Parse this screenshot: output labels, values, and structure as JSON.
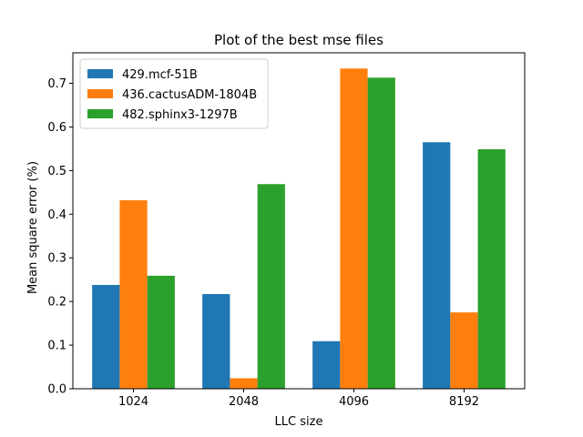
{
  "chart_data": {
    "type": "bar",
    "title": "Plot of the best mse files",
    "xlabel": "LLC size",
    "ylabel": "Mean square error (%)",
    "categories": [
      "1024",
      "2048",
      "4096",
      "8192"
    ],
    "series": [
      {
        "name": "429.mcf-51B",
        "color": "#1f77b4",
        "values": [
          0.238,
          0.217,
          0.109,
          0.565
        ]
      },
      {
        "name": "436.cactusADM-1804B",
        "color": "#ff7f0e",
        "values": [
          0.432,
          0.024,
          0.734,
          0.175
        ]
      },
      {
        "name": "482.sphinx3-1297B",
        "color": "#2ca02c",
        "values": [
          0.259,
          0.469,
          0.713,
          0.549
        ]
      }
    ],
    "ylim": [
      0,
      0.77
    ],
    "yticks": [
      0.0,
      0.1,
      0.2,
      0.3,
      0.4,
      0.5,
      0.6,
      0.7
    ],
    "ytick_labels": [
      "0.0",
      "0.1",
      "0.2",
      "0.3",
      "0.4",
      "0.5",
      "0.6",
      "0.7"
    ],
    "legend_position": "top-left",
    "grid": false
  }
}
